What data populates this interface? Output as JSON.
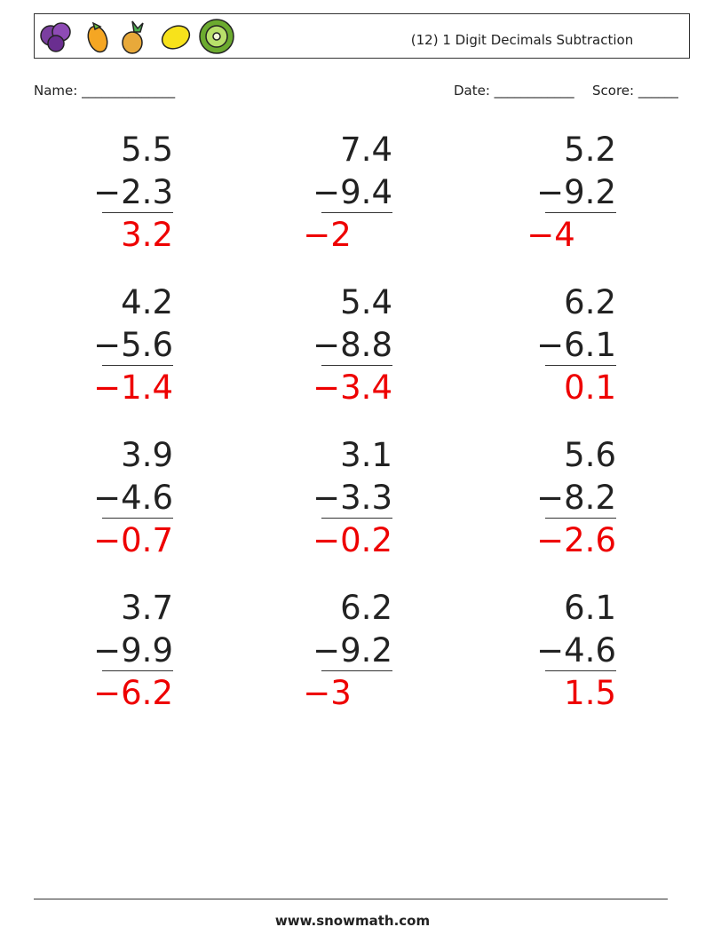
{
  "header": {
    "title": "(12) 1 Digit Decimals Subtraction"
  },
  "fields": {
    "name": "Name: ______________",
    "date": "Date: ____________",
    "score": "Score: ______"
  },
  "problems": [
    {
      "top": "5.5",
      "bottom": "−2.3",
      "answer": "3.2"
    },
    {
      "top": "7.4",
      "bottom": "−9.4",
      "answer": "−2"
    },
    {
      "top": "5.2",
      "bottom": "−9.2",
      "answer": "−4"
    },
    {
      "top": "4.2",
      "bottom": "−5.6",
      "answer": "−1.4"
    },
    {
      "top": "5.4",
      "bottom": "−8.8",
      "answer": "−3.4"
    },
    {
      "top": "6.2",
      "bottom": "−6.1",
      "answer": "0.1"
    },
    {
      "top": "3.9",
      "bottom": "−4.6",
      "answer": "−0.7"
    },
    {
      "top": "3.1",
      "bottom": "−3.3",
      "answer": "−0.2"
    },
    {
      "top": "5.6",
      "bottom": "−8.2",
      "answer": "−2.6"
    },
    {
      "top": "3.7",
      "bottom": "−9.9",
      "answer": "−6.2"
    },
    {
      "top": "6.2",
      "bottom": "−9.2",
      "answer": "−3"
    },
    {
      "top": "6.1",
      "bottom": "−4.6",
      "answer": "1.5"
    }
  ],
  "footer": {
    "url": "www.snowmath.com"
  }
}
